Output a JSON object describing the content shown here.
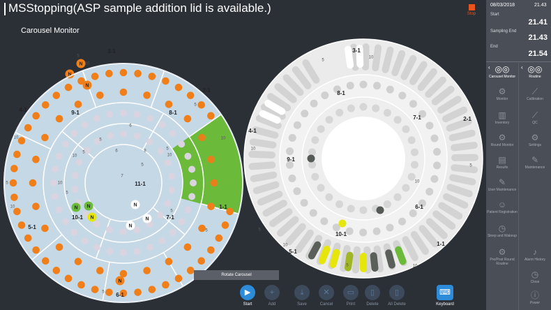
{
  "header": {
    "title": "MSStopping(ASP sample addition lid is available.)",
    "stop_label": "Stop",
    "subtitle": "Carousel Monitor"
  },
  "side": {
    "date": "08/03/2018",
    "time": "21.43",
    "start_label": "Start",
    "start_value": "21.41",
    "sampling_end_label": "Sampling End",
    "sampling_end_value": "21.43",
    "end_label": "End",
    "end_value": "21.54"
  },
  "nav": {
    "left": [
      {
        "label": "Carousel Monitor",
        "icon": "carousel-icon",
        "active": true
      },
      {
        "label": "Monitor",
        "icon": "monitor-icon"
      },
      {
        "label": "Inventory",
        "icon": "inventory-icon"
      },
      {
        "label": "Round Monitor",
        "icon": "round-monitor-icon"
      },
      {
        "label": "Results",
        "icon": "results-icon"
      },
      {
        "label": "User Maintenance",
        "icon": "wrench-icon"
      },
      {
        "label": "Patient Registration",
        "icon": "patient-icon"
      },
      {
        "label": "Sleep and Wakeup",
        "icon": "alarm-clock-icon"
      },
      {
        "label": "Pre/Post Round Routine",
        "icon": "gear-icon"
      }
    ],
    "right": [
      {
        "label": "Routine",
        "icon": "routine-icon",
        "active": true
      },
      {
        "label": "Calibration",
        "icon": "calibration-icon"
      },
      {
        "label": "QC",
        "icon": "qc-icon"
      },
      {
        "label": "Settings",
        "icon": "settings-icon"
      },
      {
        "label": "Maintenance",
        "icon": "maintenance-icon"
      },
      {
        "label": "Alarm History",
        "icon": "bell-icon"
      },
      {
        "label": "Close",
        "icon": "close-icon"
      },
      {
        "label": "Power",
        "icon": "power-icon"
      }
    ]
  },
  "rotate_label": "Rotate Carousel",
  "toolbar": [
    {
      "label": "Start",
      "icon": "play-icon",
      "enabled": true
    },
    {
      "label": "Add",
      "icon": "plus-icon"
    },
    {
      "label": "Save",
      "icon": "save-icon"
    },
    {
      "label": "Cancel",
      "icon": "cancel-icon"
    },
    {
      "label": "Print",
      "icon": "print-icon"
    },
    {
      "label": "Delete",
      "icon": "delete-icon"
    },
    {
      "label": "All Delete",
      "icon": "all-delete-icon"
    },
    {
      "label": "Keyboard",
      "icon": "keyboard-icon",
      "enabled": true
    }
  ],
  "left_carousel": {
    "outer_labels": [
      "3-1",
      "2-1",
      "4-1",
      "1-1",
      "5-1",
      "6-1"
    ],
    "mid_labels": [
      "9-1",
      "8-1",
      "7-1",
      "10-1"
    ],
    "inner_label": "11-1",
    "markers": {
      "normal": "N",
      "normal_highlight": "N"
    },
    "outer_numbers": [
      "5",
      "10"
    ],
    "mid_numbers": [
      "5",
      "10"
    ],
    "inner_numbers": [
      "5",
      "6",
      "7",
      "8"
    ]
  },
  "right_carousel": {
    "outer_labels": [
      "3-1",
      "2-1",
      "4-1",
      "1-1",
      "5-1"
    ],
    "mid_labels": [
      "8-1",
      "7-1",
      "9-1",
      "6-1",
      "10-1"
    ],
    "outer_numbers": [
      "5",
      "10"
    ]
  },
  "colors": {
    "orange": "#f07f1a",
    "green": "#6bba3a",
    "yellow": "#e6e60a",
    "olive": "#a0b624",
    "dark": "#555a57",
    "accent": "#2d8cd9"
  }
}
